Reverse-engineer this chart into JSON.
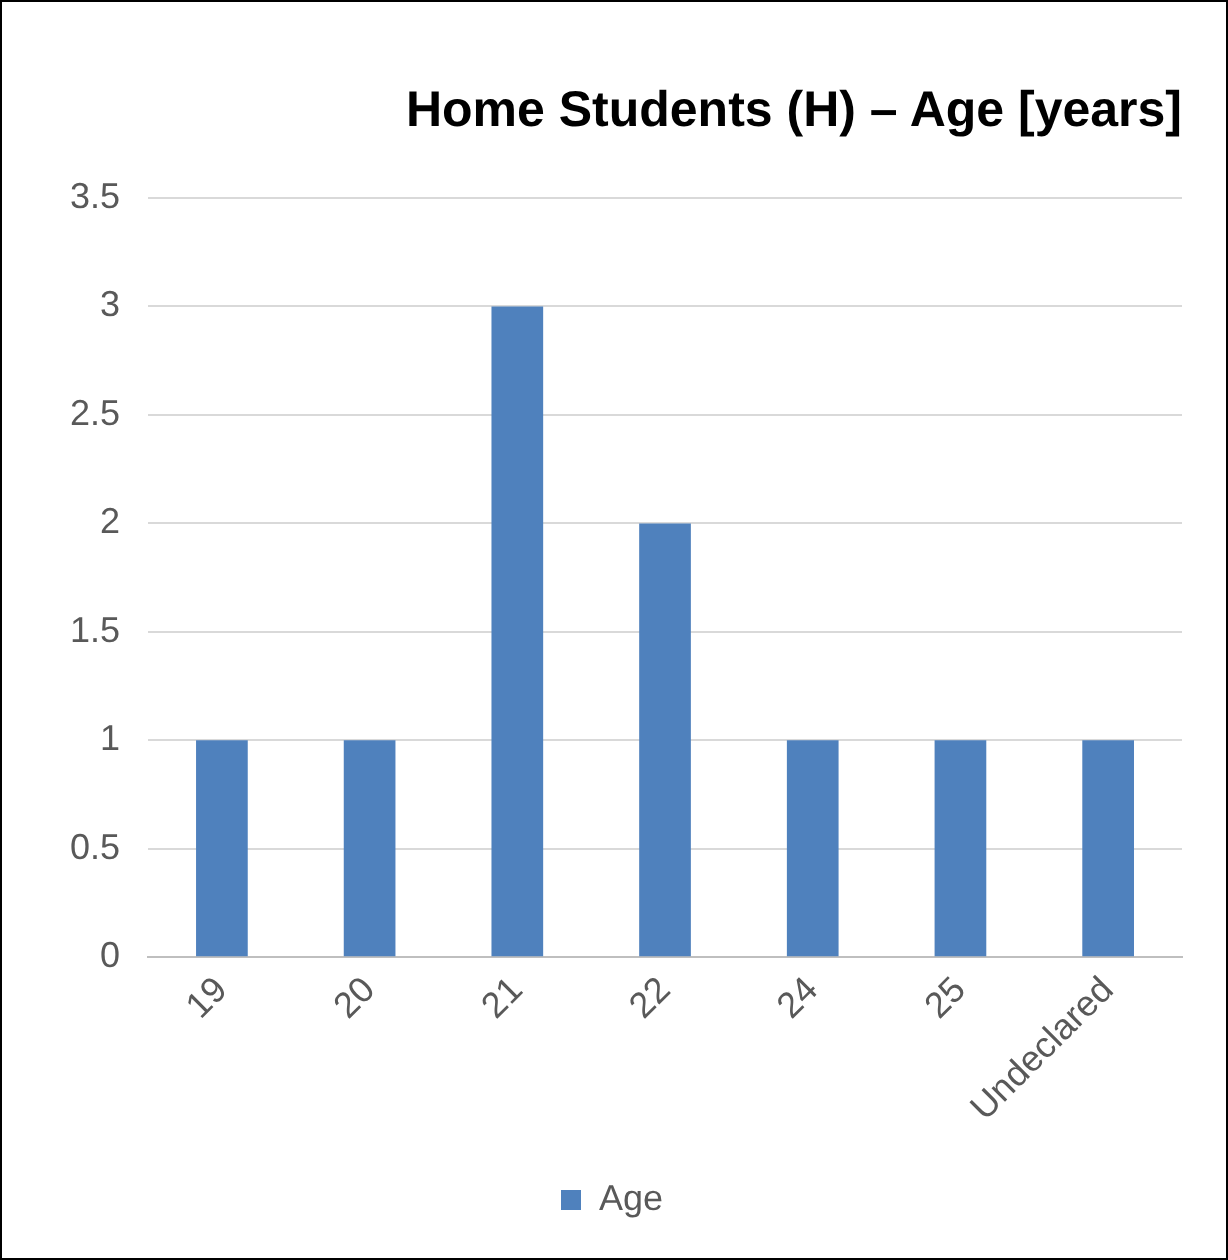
{
  "chart_data": {
    "type": "bar",
    "title": "Home Students (H) – Age [years]",
    "categories": [
      "19",
      "20",
      "21",
      "22",
      "24",
      "25",
      "Undeclared"
    ],
    "series": [
      {
        "name": "Age",
        "color": "#4f81bd",
        "values": [
          1,
          1,
          3,
          2,
          1,
          1,
          1
        ]
      }
    ],
    "ylim": [
      0,
      3.5
    ],
    "yticks": [
      0,
      0.5,
      1,
      1.5,
      2,
      2.5,
      3,
      3.5
    ],
    "grid": "y",
    "legend": "bottom"
  }
}
